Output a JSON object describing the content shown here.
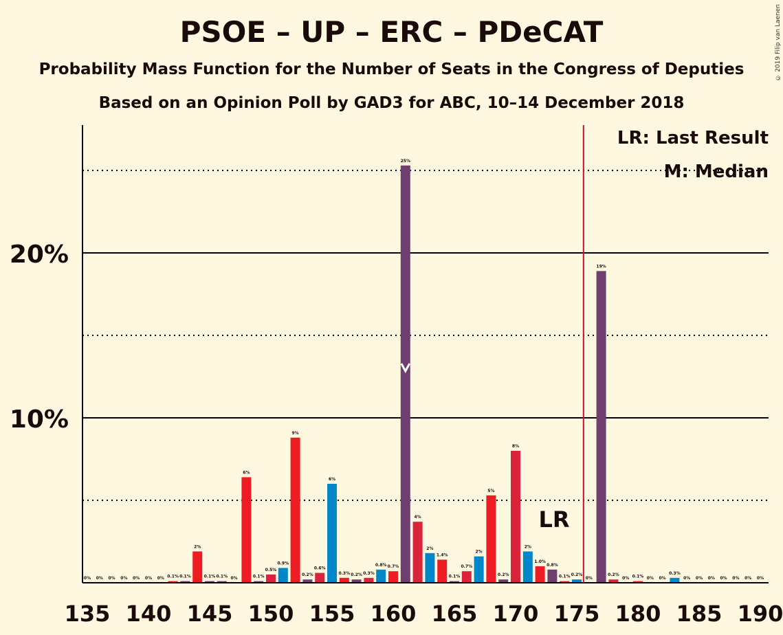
{
  "title": "PSOE – UP – ERC – PDeCAT",
  "subtitle1": "Probability Mass Function for the Number of Seats in the Congress of Deputies",
  "subtitle2": "Based on an Opinion Poll by GAD3 for ABC, 10–14 December 2018",
  "copyright": "© 2019 Filip van Laenen",
  "legend": {
    "lr": "LR: Last Result",
    "median": "M: Median"
  },
  "lr_marker_label": "LR",
  "colors": {
    "background": "#FFF8E1",
    "red": "#EE1D23",
    "blue": "#0087CA",
    "purple": "#6F3F6F",
    "crimson": "#DA243C",
    "lr_line": "#C8102E"
  },
  "chart_data": {
    "type": "bar",
    "xlim": [
      135,
      190
    ],
    "ylim": [
      0,
      27.5
    ],
    "x_ticks": [
      "135",
      "140",
      "145",
      "150",
      "155",
      "160",
      "165",
      "170",
      "175",
      "180",
      "185",
      "190"
    ],
    "y_ticks": [
      "10%",
      "20%"
    ],
    "last_result": 176,
    "median": 161,
    "bars": [
      {
        "x": 135,
        "value": 0,
        "label": "0%",
        "color": "purple"
      },
      {
        "x": 136,
        "value": 0,
        "label": "0%",
        "color": "purple"
      },
      {
        "x": 137,
        "value": 0,
        "label": "0%",
        "color": "purple"
      },
      {
        "x": 138,
        "value": 0,
        "label": "0%",
        "color": "purple"
      },
      {
        "x": 139,
        "value": 0,
        "label": "0%",
        "color": "purple"
      },
      {
        "x": 140,
        "value": 0,
        "label": "0%",
        "color": "purple"
      },
      {
        "x": 141,
        "value": 0,
        "label": "0%",
        "color": "purple"
      },
      {
        "x": 142,
        "value": 0.1,
        "label": "0.1%",
        "color": "red"
      },
      {
        "x": 143,
        "value": 0.1,
        "label": "0.1%",
        "color": "purple"
      },
      {
        "x": 144,
        "value": 1.9,
        "label": "2%",
        "color": "red"
      },
      {
        "x": 145,
        "value": 0.1,
        "label": "0.1%",
        "color": "purple"
      },
      {
        "x": 146,
        "value": 0.1,
        "label": "0.1%",
        "color": "purple"
      },
      {
        "x": 147,
        "value": 0,
        "label": "0%",
        "color": "purple"
      },
      {
        "x": 148,
        "value": 6.4,
        "label": "6%",
        "color": "red"
      },
      {
        "x": 149,
        "value": 0.1,
        "label": "0.1%",
        "color": "purple"
      },
      {
        "x": 150,
        "value": 0.5,
        "label": "0.5%",
        "color": "crimson"
      },
      {
        "x": 151,
        "value": 0.9,
        "label": "0.9%",
        "color": "blue"
      },
      {
        "x": 152,
        "value": 8.8,
        "label": "9%",
        "color": "red"
      },
      {
        "x": 153,
        "value": 0.2,
        "label": "0.2%",
        "color": "purple"
      },
      {
        "x": 154,
        "value": 0.6,
        "label": "0.6%",
        "color": "crimson"
      },
      {
        "x": 155,
        "value": 6.0,
        "label": "6%",
        "color": "blue"
      },
      {
        "x": 156,
        "value": 0.3,
        "label": "0.3%",
        "color": "red"
      },
      {
        "x": 157,
        "value": 0.2,
        "label": "0.2%",
        "color": "purple"
      },
      {
        "x": 158,
        "value": 0.3,
        "label": "0.3%",
        "color": "crimson"
      },
      {
        "x": 159,
        "value": 0.8,
        "label": "0.8%",
        "color": "blue"
      },
      {
        "x": 160,
        "value": 0.7,
        "label": "0.7%",
        "color": "red"
      },
      {
        "x": 161,
        "value": 25.3,
        "label": "25%",
        "color": "purple"
      },
      {
        "x": 162,
        "value": 3.7,
        "label": "4%",
        "color": "crimson"
      },
      {
        "x": 163,
        "value": 1.8,
        "label": "2%",
        "color": "blue"
      },
      {
        "x": 164,
        "value": 1.4,
        "label": "1.4%",
        "color": "red"
      },
      {
        "x": 165,
        "value": 0.1,
        "label": "0.1%",
        "color": "purple"
      },
      {
        "x": 166,
        "value": 0.7,
        "label": "0.7%",
        "color": "crimson"
      },
      {
        "x": 167,
        "value": 1.6,
        "label": "2%",
        "color": "blue"
      },
      {
        "x": 168,
        "value": 5.3,
        "label": "5%",
        "color": "red"
      },
      {
        "x": 169,
        "value": 0.2,
        "label": "0.2%",
        "color": "purple"
      },
      {
        "x": 170,
        "value": 8.0,
        "label": "8%",
        "color": "crimson"
      },
      {
        "x": 171,
        "value": 1.9,
        "label": "2%",
        "color": "blue"
      },
      {
        "x": 172,
        "value": 1.0,
        "label": "1.0%",
        "color": "red"
      },
      {
        "x": 173,
        "value": 0.8,
        "label": "0.8%",
        "color": "purple"
      },
      {
        "x": 174,
        "value": 0.1,
        "label": "0.1%",
        "color": "crimson"
      },
      {
        "x": 175,
        "value": 0.2,
        "label": "0.2%",
        "color": "blue"
      },
      {
        "x": 176,
        "value": 0,
        "label": "0%",
        "color": "red"
      },
      {
        "x": 177,
        "value": 18.9,
        "label": "19%",
        "color": "purple"
      },
      {
        "x": 178,
        "value": 0.2,
        "label": "0.2%",
        "color": "crimson"
      },
      {
        "x": 179,
        "value": 0,
        "label": "0%",
        "color": "blue"
      },
      {
        "x": 180,
        "value": 0.1,
        "label": "0.1%",
        "color": "red"
      },
      {
        "x": 181,
        "value": 0,
        "label": "0%",
        "color": "purple"
      },
      {
        "x": 182,
        "value": 0,
        "label": "0%",
        "color": "crimson"
      },
      {
        "x": 183,
        "value": 0.3,
        "label": "0.3%",
        "color": "blue"
      },
      {
        "x": 184,
        "value": 0,
        "label": "0%",
        "color": "red"
      },
      {
        "x": 185,
        "value": 0,
        "label": "0%",
        "color": "purple"
      },
      {
        "x": 186,
        "value": 0,
        "label": "0%",
        "color": "crimson"
      },
      {
        "x": 187,
        "value": 0,
        "label": "0%",
        "color": "blue"
      },
      {
        "x": 188,
        "value": 0,
        "label": "0%",
        "color": "red"
      },
      {
        "x": 189,
        "value": 0,
        "label": "0%",
        "color": "purple"
      },
      {
        "x": 190,
        "value": 0,
        "label": "0%",
        "color": "crimson"
      }
    ]
  }
}
